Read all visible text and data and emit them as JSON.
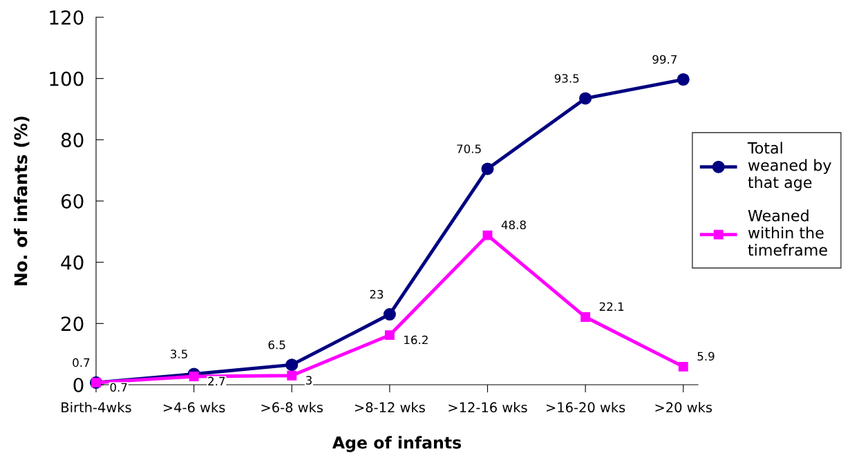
{
  "chart_data": {
    "type": "line",
    "xlabel": "Age of infants",
    "ylabel": "No. of infants (%)",
    "categories": [
      "Birth-4wks",
      ">4-6 wks",
      ">6-8 wks",
      ">8-12 wks",
      ">12-16 wks",
      ">16-20 wks",
      ">20 wks"
    ],
    "series": [
      {
        "name": "Total weaned by that age",
        "color": "#000080",
        "marker": "circle",
        "values": [
          0.7,
          3.5,
          6.5,
          23,
          70.5,
          93.5,
          99.7
        ]
      },
      {
        "name": "Weaned within the timeframe",
        "color": "#ff00ff",
        "marker": "square",
        "values": [
          0.7,
          2.7,
          3,
          16.2,
          48.8,
          22.1,
          5.9
        ]
      }
    ],
    "ylim": [
      0,
      120
    ],
    "yticks": [
      0,
      20,
      40,
      60,
      80,
      100,
      120
    ],
    "grid": false,
    "legend": "right",
    "data_labels": true
  }
}
